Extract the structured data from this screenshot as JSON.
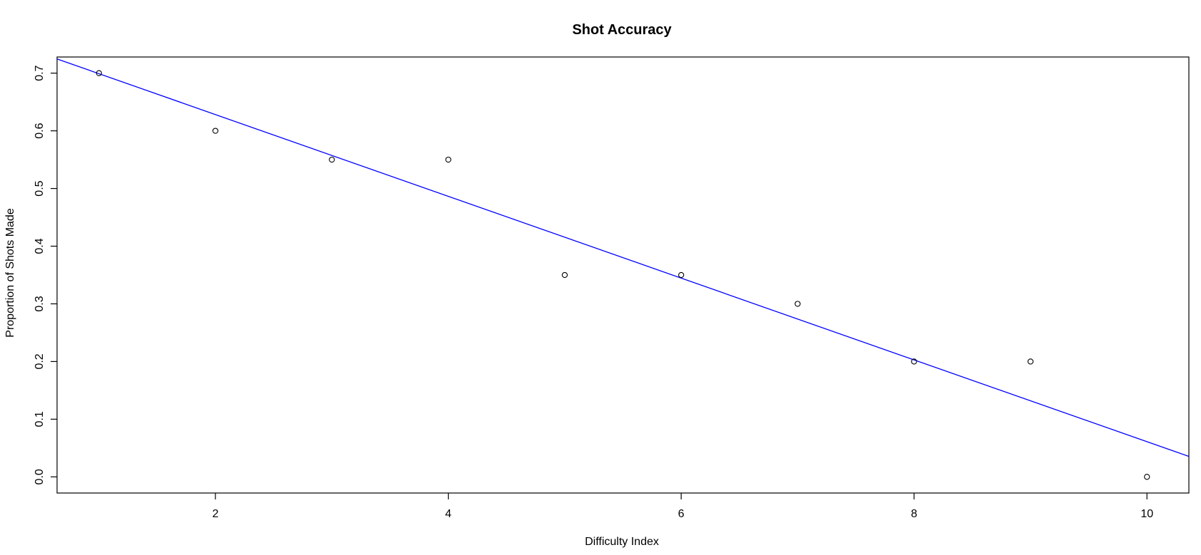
{
  "chart_data": {
    "type": "scatter",
    "title": "Shot Accuracy",
    "xlabel": "Difficulty Index",
    "ylabel": "Proportion of Shots Made",
    "xlim": [
      0.64,
      10.36
    ],
    "ylim": [
      -0.028,
      0.728
    ],
    "x_ticks": [
      2,
      4,
      6,
      8,
      10
    ],
    "x_tick_labels": [
      "2",
      "4",
      "6",
      "8",
      "10"
    ],
    "y_ticks": [
      0.0,
      0.1,
      0.2,
      0.3,
      0.4,
      0.5,
      0.6,
      0.7
    ],
    "y_tick_labels": [
      "0.0",
      "0.1",
      "0.2",
      "0.3",
      "0.4",
      "0.5",
      "0.6",
      "0.7"
    ],
    "grid": false,
    "series": [
      {
        "x": [
          1,
          2,
          3,
          4,
          5,
          6,
          7,
          8,
          9,
          10
        ],
        "y": [
          0.7,
          0.6,
          0.55,
          0.55,
          0.35,
          0.35,
          0.3,
          0.2,
          0.2,
          0.0
        ],
        "marker": "open-circle",
        "color": "#000000"
      }
    ],
    "trend_line": {
      "intercept": 0.77,
      "slope": -0.0709,
      "color": "#0000ff"
    }
  }
}
